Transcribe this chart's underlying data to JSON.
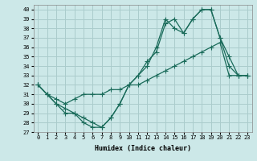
{
  "xlabel": "Humidex (Indice chaleur)",
  "background_color": "#cce8e8",
  "grid_color": "#aacccc",
  "line_color": "#1a6b5a",
  "xlim": [
    -0.5,
    23.5
  ],
  "ylim": [
    27,
    40.5
  ],
  "yticks": [
    27,
    28,
    29,
    30,
    31,
    32,
    33,
    34,
    35,
    36,
    37,
    38,
    39,
    40
  ],
  "xticks": [
    0,
    1,
    2,
    3,
    4,
    5,
    6,
    7,
    8,
    9,
    10,
    11,
    12,
    13,
    14,
    15,
    16,
    17,
    18,
    19,
    20,
    21,
    22,
    23
  ],
  "line1_x": [
    0,
    1,
    2,
    3,
    4,
    5,
    6,
    7,
    8,
    9,
    10,
    11,
    12,
    13,
    14,
    15,
    16,
    17,
    18,
    19,
    20,
    21,
    22,
    23
  ],
  "line1_y": [
    32,
    31,
    30,
    29.5,
    29,
    28,
    27.5,
    27.5,
    28.5,
    30,
    32,
    33,
    34,
    36,
    39,
    38,
    37.5,
    39,
    40,
    40,
    37,
    34,
    33,
    33
  ],
  "line2_x": [
    0,
    1,
    2,
    3,
    4,
    5,
    6,
    7,
    8,
    9,
    10,
    11,
    12,
    13,
    14,
    15,
    16,
    17,
    18,
    19,
    20,
    21,
    22,
    23
  ],
  "line2_y": [
    32,
    31,
    30,
    29,
    29,
    28.5,
    28,
    27.5,
    28.5,
    30,
    32,
    33,
    34.5,
    35.5,
    38.5,
    39,
    37.5,
    39,
    40,
    40,
    37,
    35,
    33,
    33
  ],
  "line3_x": [
    0,
    1,
    2,
    3,
    4,
    5,
    6,
    7,
    8,
    9,
    10,
    11,
    12,
    13,
    14,
    15,
    16,
    17,
    18,
    19,
    20,
    21,
    22,
    23
  ],
  "line3_y": [
    32,
    31,
    30.5,
    30,
    30.5,
    31,
    31,
    31,
    31.5,
    31.5,
    32,
    32,
    32.5,
    33,
    33.5,
    34,
    34.5,
    35,
    35.5,
    36,
    36.5,
    33,
    33,
    33
  ]
}
